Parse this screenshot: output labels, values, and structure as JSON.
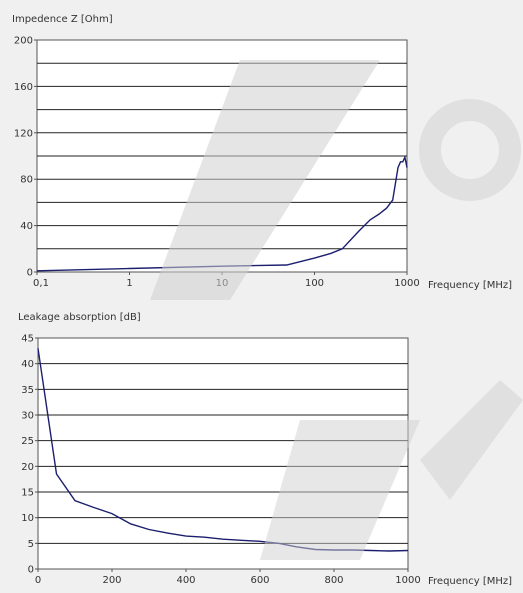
{
  "chart_data": [
    {
      "type": "line",
      "ylabel": "Impedence Z [Ohm]",
      "xlabel": "Frequency [MHz]",
      "xscale": "log",
      "xlim": [
        0.1,
        1000
      ],
      "ylim": [
        0,
        200
      ],
      "xticks": [
        "0,1",
        "1",
        "10",
        "100",
        "1000"
      ],
      "xtick_values": [
        0.1,
        1,
        10,
        100,
        1000
      ],
      "yticks": [
        "0",
        "40",
        "80",
        "120",
        "160",
        "200"
      ],
      "ytick_values": [
        0,
        40,
        80,
        120,
        160,
        200
      ],
      "grid": "horizontal",
      "line_color": "#1c1f6e",
      "series": [
        {
          "x": [
            0.1,
            1,
            10,
            50,
            100,
            150,
            200,
            300,
            400,
            500,
            600,
            700,
            800,
            850,
            900,
            950,
            1000
          ],
          "y": [
            1,
            3,
            5,
            6,
            12,
            16,
            20,
            35,
            45,
            50,
            55,
            62,
            90,
            95,
            95,
            99,
            90
          ]
        }
      ]
    },
    {
      "type": "line",
      "ylabel": "Leakage absorption [dB]",
      "xlabel": "Frequency [MHz]",
      "xlim": [
        0,
        1000
      ],
      "ylim": [
        0,
        45
      ],
      "xticks": [
        "0",
        "200",
        "400",
        "600",
        "800",
        "1000"
      ],
      "xtick_values": [
        0,
        200,
        400,
        600,
        800,
        1000
      ],
      "yticks": [
        "0",
        "5",
        "10",
        "15",
        "20",
        "25",
        "30",
        "35",
        "40",
        "45"
      ],
      "ytick_values": [
        0,
        5,
        10,
        15,
        20,
        25,
        30,
        35,
        40,
        45
      ],
      "grid": "horizontal",
      "line_color": "#1c1f6e",
      "series": [
        {
          "x": [
            0,
            50,
            100,
            150,
            200,
            250,
            300,
            350,
            400,
            450,
            500,
            550,
            600,
            650,
            700,
            750,
            800,
            850,
            900,
            950,
            1000
          ],
          "y": [
            43,
            18.5,
            13.3,
            12,
            10.8,
            8.8,
            7.7,
            7,
            6.4,
            6.2,
            5.8,
            5.6,
            5.4,
            5,
            4.3,
            3.8,
            3.7,
            3.7,
            3.6,
            3.5,
            3.6
          ]
        }
      ]
    }
  ]
}
